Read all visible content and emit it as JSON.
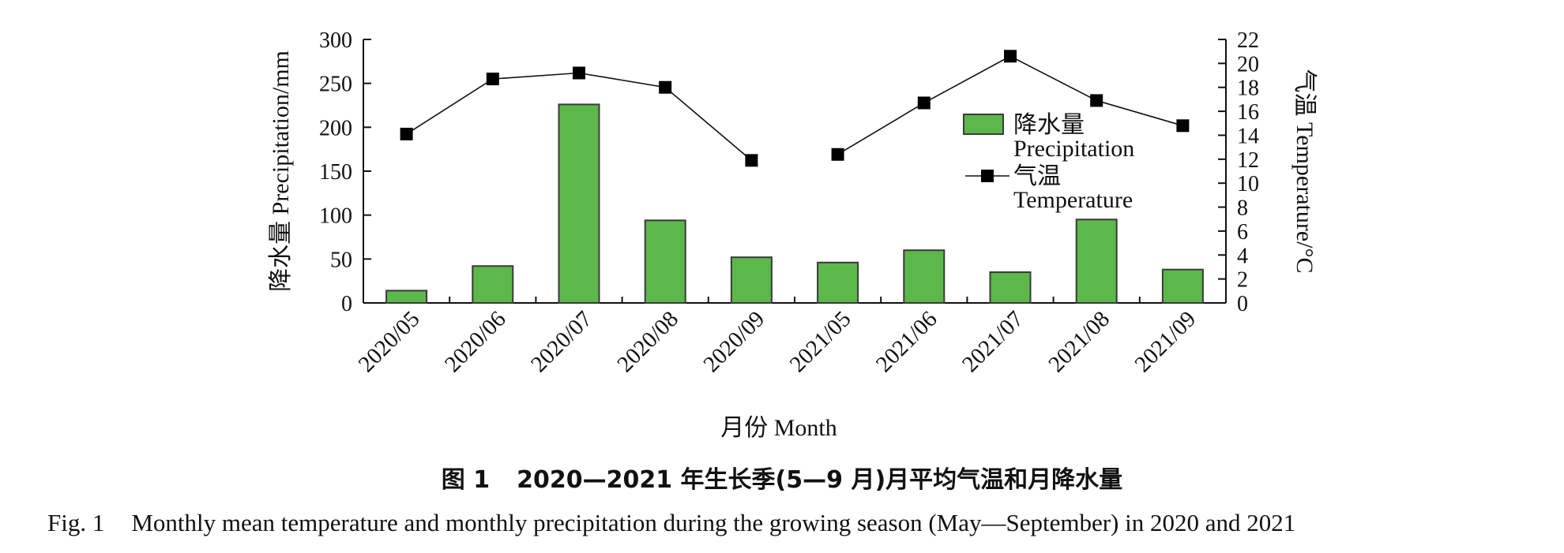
{
  "chart_data": {
    "type": "bar",
    "categories": [
      "2020/05",
      "2020/06",
      "2020/07",
      "2020/08",
      "2020/09",
      "2021/05",
      "2021/06",
      "2021/07",
      "2021/08",
      "2021/09"
    ],
    "series": [
      {
        "name": "降水量 Precipitation",
        "type": "bar",
        "axis": "left",
        "values": [
          14,
          42,
          226,
          94,
          52,
          46,
          60,
          35,
          95,
          38
        ]
      },
      {
        "name": "气温 Temperature",
        "type": "line",
        "axis": "right",
        "segments": [
          [
            0,
            4
          ],
          [
            5,
            9
          ]
        ],
        "values": [
          14.1,
          18.7,
          19.2,
          18.0,
          11.9,
          12.4,
          16.7,
          20.6,
          16.9,
          14.8
        ]
      }
    ],
    "xlabel": "月份 Month",
    "ylabel_left": "降水量 Precipitation/mm",
    "ylabel_right": "气温 Temperature/°C",
    "ylim_left": [
      0,
      300
    ],
    "yticks_left": [
      0,
      50,
      100,
      150,
      200,
      250,
      300
    ],
    "ylim_right": [
      0,
      22
    ],
    "yticks_right": [
      0,
      2,
      4,
      6,
      8,
      10,
      12,
      14,
      16,
      18,
      20,
      22
    ],
    "legend": {
      "placement": "upper-right-inside",
      "entries": [
        {
          "cn": "降水量",
          "en": "Precipitation"
        },
        {
          "cn": "气温",
          "en": "Temperature"
        }
      ]
    },
    "grid": false
  },
  "caption": {
    "cn_num": "图 1",
    "cn_text": "2020—2021 年生长季(5—9 月)月平均气温和月降水量",
    "en_num": "Fig. 1",
    "en_text": "Monthly mean temperature and monthly precipitation during the growing season (May—September) in 2020 and 2021"
  },
  "colors": {
    "bar_fill": "#5cb84a",
    "bar_stroke": "#3a3a3a",
    "line": "#111111",
    "marker": "#000000"
  }
}
